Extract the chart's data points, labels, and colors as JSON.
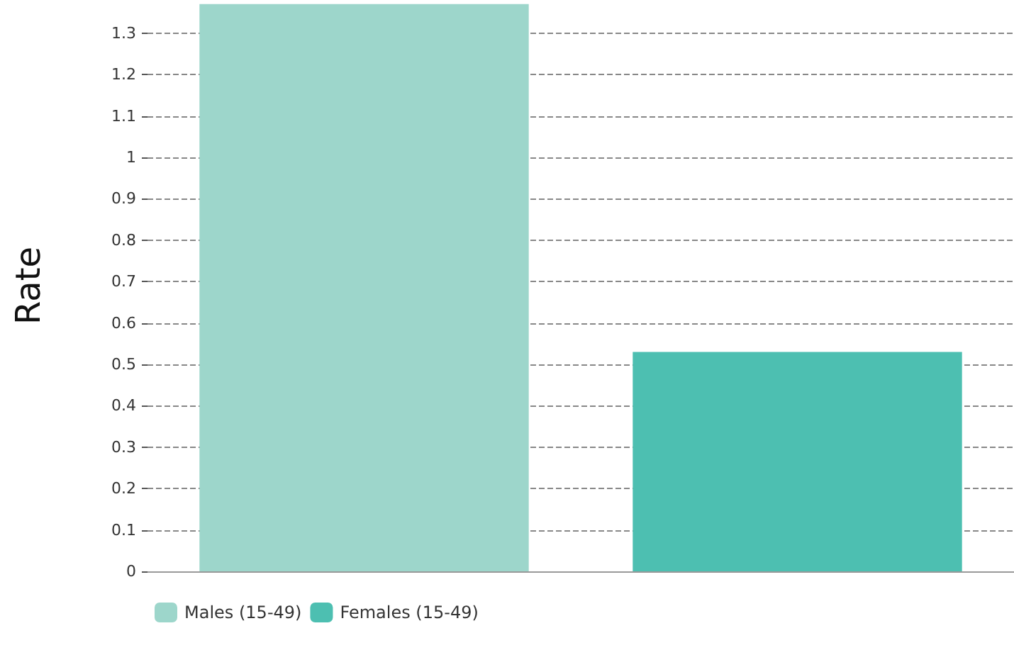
{
  "chart_data": {
    "type": "bar",
    "ylabel": "Rate",
    "categories": [
      null,
      null
    ],
    "series": [
      {
        "name": "Males (15-49)",
        "color": "#9dd6cb",
        "values": [
          1.37,
          null
        ]
      },
      {
        "name": "Females (15-49)",
        "color": "#4dbfb1",
        "values": [
          null,
          0.53
        ]
      }
    ],
    "ylim": [
      0,
      1.38
    ],
    "yticks": [
      0,
      0.1,
      0.2,
      0.3,
      0.4,
      0.5,
      0.6,
      0.7,
      0.8,
      0.9,
      1,
      1.1,
      1.2,
      1.3
    ],
    "grid": "y",
    "legend": "bottom left"
  }
}
